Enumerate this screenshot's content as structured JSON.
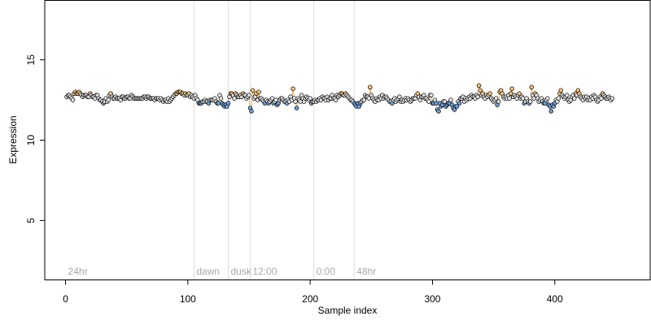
{
  "chart_data": {
    "type": "scatter",
    "title": "",
    "xlabel": "Sample index",
    "ylabel": "Expression",
    "xlim": [
      -17,
      478
    ],
    "ylim": [
      1.3,
      18.7
    ],
    "xticks": [
      0,
      100,
      200,
      300,
      400
    ],
    "yticks": [
      5,
      10,
      15
    ],
    "grid": false,
    "legend": "none",
    "phase_markers": [
      {
        "label": "24hr",
        "x": 0
      },
      {
        "label": "dawn",
        "x": 105
      },
      {
        "label": "dusk",
        "x": 133
      },
      {
        "label": "12:00",
        "x": 151
      },
      {
        "label": "0:00",
        "x": 203
      },
      {
        "label": "48hr",
        "x": 236
      }
    ],
    "line_color": "#e8a040",
    "point_default_fill": "#e0e0e0",
    "high_fill": "#f5c27a",
    "low_fill": "#6fa0d8",
    "high_threshold": 12.85,
    "low_threshold": 12.35,
    "values": [
      12.7,
      12.8,
      12.8,
      12.7,
      12.6,
      12.5,
      12.9,
      13.0,
      12.9,
      12.9,
      13.0,
      12.9,
      12.8,
      12.7,
      12.8,
      12.8,
      12.8,
      12.7,
      12.7,
      12.9,
      12.8,
      12.7,
      12.7,
      12.6,
      12.8,
      12.8,
      12.6,
      12.5,
      12.5,
      12.4,
      12.3,
      12.4,
      12.6,
      12.4,
      12.5,
      12.8,
      12.9,
      12.7,
      12.6,
      12.6,
      12.7,
      12.6,
      12.6,
      12.6,
      12.5,
      12.7,
      12.7,
      12.6,
      12.6,
      12.7,
      12.7,
      12.6,
      12.6,
      12.8,
      12.7,
      12.6,
      12.6,
      12.6,
      12.6,
      12.6,
      12.6,
      12.6,
      12.6,
      12.7,
      12.7,
      12.6,
      12.7,
      12.7,
      12.6,
      12.6,
      12.6,
      12.6,
      12.5,
      12.6,
      12.6,
      12.6,
      12.5,
      12.6,
      12.5,
      12.4,
      12.5,
      12.5,
      12.4,
      12.6,
      12.4,
      12.5,
      12.6,
      12.7,
      12.8,
      12.9,
      12.9,
      13.0,
      13.0,
      13.0,
      12.9,
      12.9,
      12.8,
      12.9,
      12.8,
      12.8,
      12.9,
      12.7,
      12.8,
      12.7,
      12.6,
      12.8,
      12.6,
      12.5,
      12.3,
      12.3,
      12.3,
      12.4,
      12.4,
      12.5,
      12.4,
      12.4,
      12.3,
      12.5,
      12.5,
      12.5,
      12.5,
      12.6,
      12.4,
      12.3,
      12.3,
      12.8,
      12.6,
      12.3,
      12.2,
      12.1,
      12.2,
      12.1,
      12.3,
      12.7,
      12.9,
      12.9,
      12.8,
      12.6,
      12.9,
      12.8,
      12.7,
      12.7,
      12.8,
      12.7,
      12.9,
      12.8,
      12.8,
      12.6,
      12.7,
      12.8,
      12.0,
      11.8,
      13.1,
      12.6,
      12.7,
      12.9,
      12.5,
      13.0,
      12.6,
      12.6,
      12.5,
      12.4,
      12.3,
      12.5,
      12.4,
      12.3,
      12.4,
      12.5,
      12.6,
      12.3,
      12.4,
      12.5,
      12.2,
      12.3,
      12.5,
      12.6,
      12.6,
      12.5,
      12.4,
      12.4,
      12.3,
      12.5,
      12.4,
      12.7,
      12.5,
      13.2,
      12.6,
      12.4,
      12.0,
      12.6,
      12.5,
      12.4,
      12.8,
      12.6,
      12.4,
      12.6,
      12.7,
      12.6,
      12.5,
      12.6,
      12.3,
      12.4,
      12.4,
      12.5,
      12.4,
      12.5,
      12.5,
      12.6,
      12.5,
      12.7,
      12.6,
      12.6,
      12.5,
      12.7,
      12.5,
      12.6,
      12.6,
      12.8,
      12.6,
      12.6,
      12.5,
      12.8,
      12.7,
      12.8,
      12.9,
      12.9,
      12.8,
      12.8,
      12.9,
      12.8,
      12.7,
      12.6,
      12.5,
      12.5,
      12.4,
      12.3,
      12.2,
      12.1,
      12.3,
      12.1,
      12.3,
      12.4,
      12.5,
      12.5,
      12.8,
      12.7,
      12.7,
      12.6,
      13.3,
      12.8,
      12.6,
      12.5,
      12.4,
      12.6,
      12.5,
      12.5,
      12.7,
      12.6,
      12.8,
      12.6,
      12.7,
      12.7,
      12.6,
      12.5,
      12.4,
      12.4,
      12.3,
      12.5,
      12.6,
      12.4,
      12.5,
      12.6,
      12.7,
      12.4,
      12.5,
      12.4,
      12.5,
      12.6,
      12.5,
      12.6,
      12.5,
      12.4,
      12.5,
      12.6,
      12.6,
      12.6,
      12.8,
      12.9,
      12.7,
      12.5,
      12.7,
      12.7,
      12.8,
      12.6,
      12.6,
      12.5,
      12.4,
      12.8,
      12.8,
      12.3,
      12.3,
      12.5,
      12.3,
      11.9,
      11.8,
      12.3,
      12.1,
      12.2,
      12.4,
      12.4,
      12.1,
      12.2,
      12.3,
      12.3,
      12.5,
      12.2,
      12.0,
      11.9,
      12.1,
      12.1,
      12.4,
      12.3,
      12.6,
      12.6,
      12.7,
      12.4,
      12.6,
      12.5,
      12.6,
      12.7,
      12.6,
      12.8,
      12.7,
      12.7,
      12.6,
      12.8,
      12.7,
      13.4,
      13.1,
      12.8,
      12.9,
      12.7,
      12.6,
      12.8,
      12.7,
      12.8,
      12.9,
      12.6,
      12.5,
      12.4,
      12.5,
      12.6,
      12.2,
      12.4,
      13.0,
      13.1,
      12.9,
      12.7,
      12.6,
      12.7,
      12.6,
      12.8,
      12.6,
      12.9,
      13.2,
      12.7,
      12.8,
      12.7,
      12.6,
      12.8,
      12.9,
      12.6,
      12.7,
      12.6,
      12.3,
      12.4,
      12.6,
      12.4,
      12.3,
      12.4,
      13.3,
      12.8,
      12.6,
      12.9,
      12.8,
      12.6,
      12.4,
      12.5,
      12.6,
      12.4,
      12.3,
      12.3,
      12.5,
      12.6,
      12.2,
      12.1,
      11.8,
      12.2,
      12.1,
      12.3,
      12.5,
      12.4,
      12.6,
      12.9,
      13.1,
      12.8,
      12.7,
      12.6,
      12.7,
      12.8,
      12.5,
      12.4,
      12.5,
      12.7,
      12.8,
      12.6,
      12.9,
      12.8,
      13.1,
      12.9,
      12.7,
      12.6,
      12.5,
      12.7,
      12.6,
      12.7,
      12.5,
      12.6,
      12.5,
      12.7,
      12.6,
      12.8,
      12.7,
      12.5,
      12.4,
      12.5,
      12.7,
      12.6,
      12.9,
      12.8,
      12.7,
      12.6,
      12.6,
      12.7,
      12.6,
      12.5,
      12.6
    ]
  }
}
